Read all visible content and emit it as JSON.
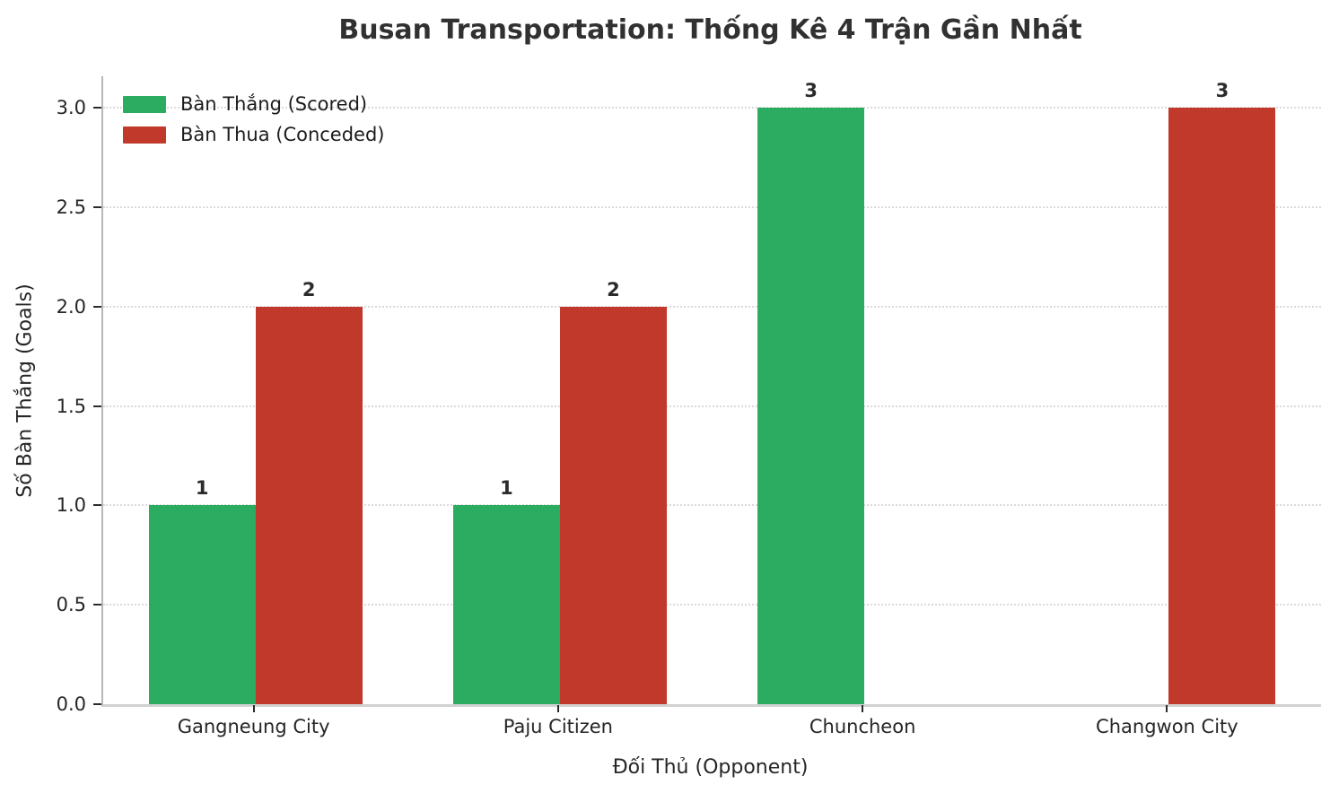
{
  "chart_data": {
    "type": "bar",
    "title": "Busan Transportation: Thống Kê 4 Trận Gần Nhất",
    "categories": [
      "Gangneung City",
      "Paju Citizen",
      "Chuncheon",
      "Changwon City"
    ],
    "series": [
      {
        "key": "scored",
        "name": "Bàn Thắng (Scored)",
        "color": "#2bac60",
        "values": [
          1,
          1,
          3,
          0
        ]
      },
      {
        "key": "conceded",
        "name": "Bàn Thua (Conceded)",
        "color": "#c0392b",
        "values": [
          2,
          2,
          0,
          3
        ]
      }
    ],
    "xlabel": "Đối Thủ (Opponent)",
    "ylabel": "Số Bàn Thắng (Goals)",
    "ylim": [
      0,
      3.15
    ],
    "yticks": [
      0,
      0.5,
      1,
      1.5,
      2,
      2.5,
      3
    ],
    "ytick_labels": [
      "0.0",
      "0.5",
      "1.0",
      "1.5",
      "2.0",
      "2.5",
      "3.0"
    ],
    "grid": {
      "axis": "y",
      "style": "dotted"
    },
    "legend": {
      "position": "upper left"
    },
    "bar_value_labels_shown": [
      1,
      2,
      1,
      2,
      3,
      3
    ]
  }
}
